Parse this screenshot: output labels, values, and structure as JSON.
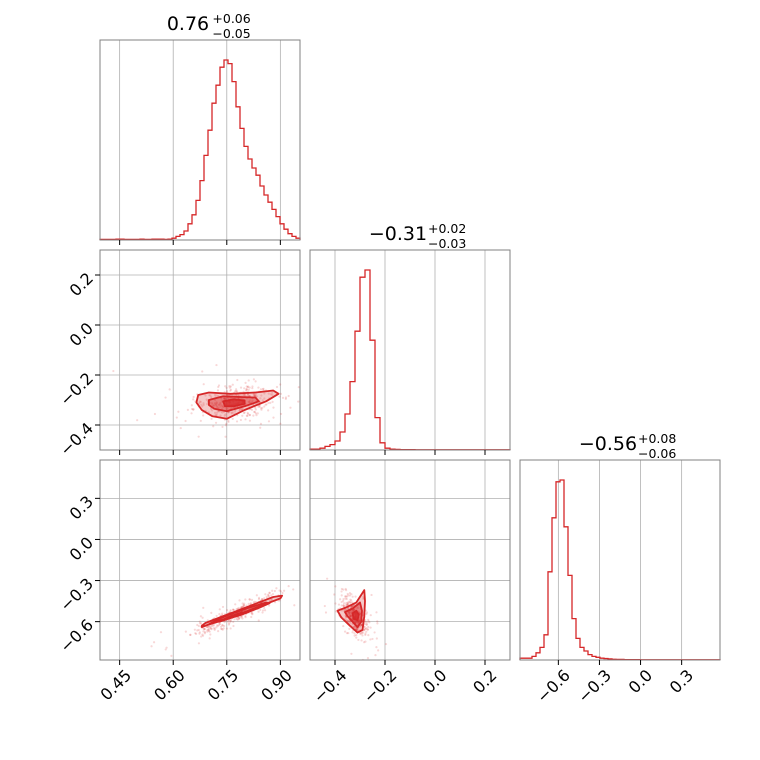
{
  "colors": {
    "line": "#d62728",
    "fill": "#d62728",
    "grid": "#b0b0b0",
    "axes": "#808080"
  },
  "chart_data": {
    "type": "corner",
    "titles": [
      {
        "main": "0.76",
        "sup": "+0.06",
        "sub": "−0.05"
      },
      {
        "main": "−0.31",
        "sup": "+0.02",
        "sub": "−0.03"
      },
      {
        "main": "−0.56",
        "sup": "+0.08",
        "sub": "−0.06"
      }
    ],
    "params": [
      {
        "range": [
          0.395,
          0.955
        ],
        "ticks": [
          0.45,
          0.6,
          0.75,
          0.9
        ],
        "tick_labels": [
          "0.45",
          "0.60",
          "0.75",
          "0.90"
        ],
        "hist": [
          0.003,
          0.003,
          0.003,
          0.003,
          0.005,
          0.005,
          0.003,
          0.003,
          0.003,
          0.003,
          0.005,
          0.003,
          0.003,
          0.005,
          0.005,
          0.005,
          0.003,
          0.005,
          0.01,
          0.02,
          0.03,
          0.05,
          0.09,
          0.14,
          0.22,
          0.33,
          0.47,
          0.61,
          0.76,
          0.86,
          0.96,
          1.0,
          0.98,
          0.88,
          0.74,
          0.62,
          0.52,
          0.45,
          0.4,
          0.36,
          0.3,
          0.25,
          0.21,
          0.17,
          0.13,
          0.09,
          0.06,
          0.035,
          0.02,
          0.01
        ]
      },
      {
        "range": [
          -0.5,
          0.3
        ],
        "ticks": [
          -0.4,
          -0.2,
          0.0,
          0.2
        ],
        "tick_labels": [
          "−0.4",
          "−0.2",
          "0.0",
          "0.2"
        ],
        "hist": [
          0.005,
          0.005,
          0.01,
          0.02,
          0.03,
          0.05,
          0.1,
          0.2,
          0.38,
          0.66,
          0.96,
          1.0,
          0.61,
          0.18,
          0.04,
          0.01,
          0.005,
          0.003,
          0.002,
          0.002,
          0.002,
          0.001,
          0.001,
          0.001,
          0.001,
          0.001,
          0.001,
          0.001,
          0.001,
          0.001,
          0.001,
          0.001,
          0.001,
          0.001,
          0.001,
          0.001,
          0.001,
          0.001,
          0.001,
          0.001
        ]
      },
      {
        "range": [
          -0.88,
          0.58
        ],
        "ticks": [
          -0.6,
          -0.3,
          0.0,
          0.3
        ],
        "tick_labels": [
          "−0.6",
          "−0.3",
          "0.0",
          "0.3"
        ],
        "hist": [
          0.01,
          0.01,
          0.01,
          0.02,
          0.04,
          0.07,
          0.14,
          0.49,
          0.79,
          0.99,
          1.0,
          0.74,
          0.47,
          0.23,
          0.12,
          0.07,
          0.05,
          0.03,
          0.02,
          0.015,
          0.01,
          0.008,
          0.006,
          0.004,
          0.003,
          0.003,
          0.002,
          0.002,
          0.002,
          0.002,
          0.001,
          0.001,
          0.001,
          0.001,
          0.001,
          0.001,
          0.001,
          0.001,
          0.001,
          0.001,
          0.001,
          0.001,
          0.001,
          0.001,
          0.001,
          0.001,
          0.001,
          0.001,
          0.001,
          0.001
        ]
      }
    ],
    "scatter_blobs": [
      {
        "x_param": 0,
        "y_param": 1,
        "center": [
          0.77,
          -0.31
        ],
        "spread": [
          0.055,
          0.032
        ],
        "rho": 0.15
      },
      {
        "x_param": 0,
        "y_param": 2,
        "center": [
          0.77,
          -0.55
        ],
        "spread": [
          0.06,
          0.075
        ],
        "rho": 0.93
      },
      {
        "x_param": 1,
        "y_param": 2,
        "center": [
          -0.32,
          -0.57
        ],
        "spread": [
          0.025,
          0.065
        ],
        "rho": -0.55
      }
    ],
    "contours": [
      {
        "x_param": 0,
        "y_param": 1,
        "levels": [
          [
            [
              0.67,
              -0.28
            ],
            [
              0.7,
              -0.27
            ],
            [
              0.76,
              -0.275
            ],
            [
              0.83,
              -0.27
            ],
            [
              0.88,
              -0.262
            ],
            [
              0.895,
              -0.275
            ],
            [
              0.86,
              -0.305
            ],
            [
              0.8,
              -0.34
            ],
            [
              0.75,
              -0.375
            ],
            [
              0.71,
              -0.365
            ],
            [
              0.68,
              -0.34
            ],
            [
              0.665,
              -0.31
            ]
          ],
          [
            [
              0.7,
              -0.3
            ],
            [
              0.74,
              -0.285
            ],
            [
              0.79,
              -0.288
            ],
            [
              0.83,
              -0.29
            ],
            [
              0.84,
              -0.305
            ],
            [
              0.8,
              -0.325
            ],
            [
              0.75,
              -0.345
            ],
            [
              0.715,
              -0.335
            ],
            [
              0.7,
              -0.32
            ]
          ],
          [
            [
              0.74,
              -0.305
            ],
            [
              0.77,
              -0.297
            ],
            [
              0.8,
              -0.302
            ],
            [
              0.8,
              -0.315
            ],
            [
              0.77,
              -0.325
            ],
            [
              0.745,
              -0.325
            ]
          ]
        ]
      },
      {
        "x_param": 0,
        "y_param": 2,
        "levels": [
          [
            [
              0.68,
              -0.64
            ],
            [
              0.72,
              -0.6
            ],
            [
              0.77,
              -0.56
            ],
            [
              0.82,
              -0.51
            ],
            [
              0.87,
              -0.46
            ],
            [
              0.9,
              -0.43
            ],
            [
              0.905,
              -0.41
            ],
            [
              0.88,
              -0.42
            ],
            [
              0.83,
              -0.47
            ],
            [
              0.78,
              -0.52
            ],
            [
              0.73,
              -0.57
            ],
            [
              0.69,
              -0.61
            ],
            [
              0.68,
              -0.63
            ]
          ],
          [
            [
              0.7,
              -0.62
            ],
            [
              0.74,
              -0.59
            ],
            [
              0.79,
              -0.55
            ],
            [
              0.84,
              -0.5
            ],
            [
              0.87,
              -0.465
            ],
            [
              0.86,
              -0.46
            ],
            [
              0.81,
              -0.5
            ],
            [
              0.76,
              -0.545
            ],
            [
              0.72,
              -0.59
            ]
          ],
          [
            [
              0.73,
              -0.6
            ],
            [
              0.77,
              -0.565
            ],
            [
              0.8,
              -0.54
            ],
            [
              0.81,
              -0.53
            ],
            [
              0.79,
              -0.535
            ],
            [
              0.76,
              -0.56
            ]
          ]
        ]
      },
      {
        "x_param": 1,
        "y_param": 2,
        "levels": [
          [
            [
              -0.39,
              -0.52
            ],
            [
              -0.36,
              -0.5
            ],
            [
              -0.315,
              -0.46
            ],
            [
              -0.283,
              -0.37
            ],
            [
              -0.28,
              -0.45
            ],
            [
              -0.283,
              -0.56
            ],
            [
              -0.29,
              -0.66
            ],
            [
              -0.31,
              -0.68
            ],
            [
              -0.34,
              -0.63
            ],
            [
              -0.375,
              -0.57
            ]
          ],
          [
            [
              -0.36,
              -0.53
            ],
            [
              -0.33,
              -0.505
            ],
            [
              -0.3,
              -0.46
            ],
            [
              -0.292,
              -0.52
            ],
            [
              -0.295,
              -0.6
            ],
            [
              -0.31,
              -0.64
            ],
            [
              -0.33,
              -0.6
            ],
            [
              -0.35,
              -0.56
            ]
          ],
          [
            [
              -0.33,
              -0.54
            ],
            [
              -0.315,
              -0.52
            ],
            [
              -0.305,
              -0.55
            ],
            [
              -0.31,
              -0.59
            ],
            [
              -0.325,
              -0.58
            ]
          ]
        ]
      }
    ]
  }
}
